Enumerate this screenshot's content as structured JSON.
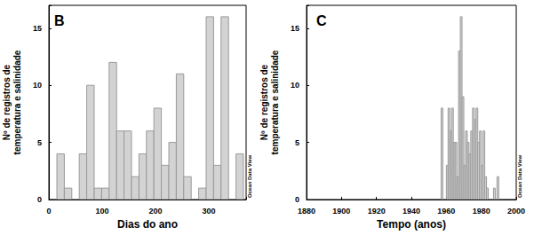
{
  "chart_data": [
    {
      "type": "histogram",
      "title": "B",
      "xlabel": "Dias do ano",
      "ylabel": "Nº de registros de\ntemperatura e salinidade",
      "bins": [
        15,
        29,
        43,
        57,
        71,
        85,
        99,
        113,
        127,
        141,
        155,
        169,
        183,
        197,
        211,
        225,
        239,
        253,
        267,
        281,
        295,
        309,
        323,
        337,
        351,
        365
      ],
      "values": [
        4,
        1,
        0,
        4,
        10,
        1,
        1,
        12,
        6,
        6,
        2,
        4,
        6,
        8,
        3,
        5,
        11,
        2,
        0,
        1,
        16,
        3,
        16,
        0,
        4
      ],
      "color": "#d3d3d3",
      "xlim": [
        0,
        370
      ],
      "xticks": [
        0,
        100,
        200,
        300
      ],
      "ylim": [
        0,
        17
      ],
      "yticks": [
        0,
        5,
        10,
        15
      ],
      "annotation": "Ocean Data View"
    },
    {
      "type": "histogram",
      "title": "C",
      "xlabel": "Tempo (anos)",
      "ylabel": "Nº de registros de\ntemperatura e salinidade",
      "bins": [
        1957,
        1958,
        1959,
        1960,
        1961,
        1962,
        1963,
        1964,
        1965,
        1966,
        1967,
        1968,
        1969,
        1970,
        1971,
        1972,
        1973,
        1974,
        1975,
        1976,
        1977,
        1978,
        1979,
        1980,
        1981,
        1982,
        1983,
        1984,
        1985,
        1986,
        1987,
        1988,
        1989,
        1990
      ],
      "values": [
        8,
        0,
        0,
        3,
        8,
        6,
        8,
        5,
        5,
        2,
        13,
        16,
        9,
        3,
        6,
        5,
        4,
        6,
        8,
        7,
        8,
        5,
        6,
        3,
        6,
        2,
        1,
        0,
        0,
        0,
        1,
        0,
        2
      ],
      "color": "#d3d3d3",
      "xlim": [
        1880,
        2000
      ],
      "xticks": [
        1880,
        1900,
        1920,
        1940,
        1960,
        1980,
        2000
      ],
      "ylim": [
        0,
        17
      ],
      "yticks": [
        0,
        5,
        10,
        15
      ],
      "annotation": "Ocean Data View"
    }
  ]
}
